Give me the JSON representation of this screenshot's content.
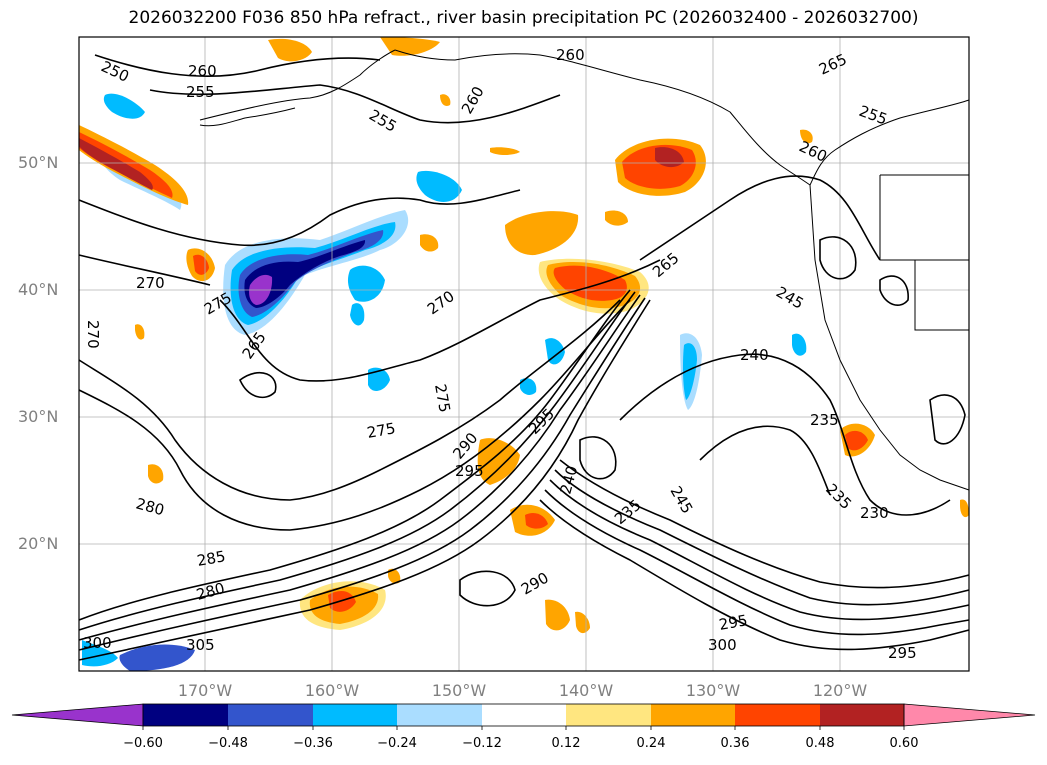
{
  "title": "2026032200 F036 850 hPa refract., river basin precipitation PC (2026032400 - 2026032700)",
  "map": {
    "lat_labels": [
      "50°N",
      "40°N",
      "30°N",
      "20°N"
    ],
    "lon_labels": [
      "170°W",
      "160°W",
      "150°W",
      "140°W",
      "130°W",
      "120°W"
    ],
    "contour_labels": [
      "250",
      "260",
      "255",
      "260",
      "255",
      "260",
      "265",
      "255",
      "260",
      "270",
      "275",
      "270",
      "265",
      "275",
      "270",
      "275",
      "265",
      "245",
      "240",
      "235",
      "230",
      "235",
      "245",
      "240",
      "235",
      "295",
      "290",
      "295",
      "280",
      "285",
      "280",
      "300",
      "305",
      "300",
      "295",
      "295",
      "290"
    ]
  },
  "colorbar": {
    "ticks": [
      "−0.60",
      "−0.48",
      "−0.36",
      "−0.24",
      "−0.12",
      "0.12",
      "0.24",
      "0.36",
      "0.48",
      "0.60"
    ],
    "colors": [
      "#9933cc",
      "#000080",
      "#3355cc",
      "#00bbff",
      "#aaddff",
      "#ffffff",
      "#ffe680",
      "#ffa500",
      "#ff4400",
      "#b22222",
      "#ff88aa"
    ]
  }
}
